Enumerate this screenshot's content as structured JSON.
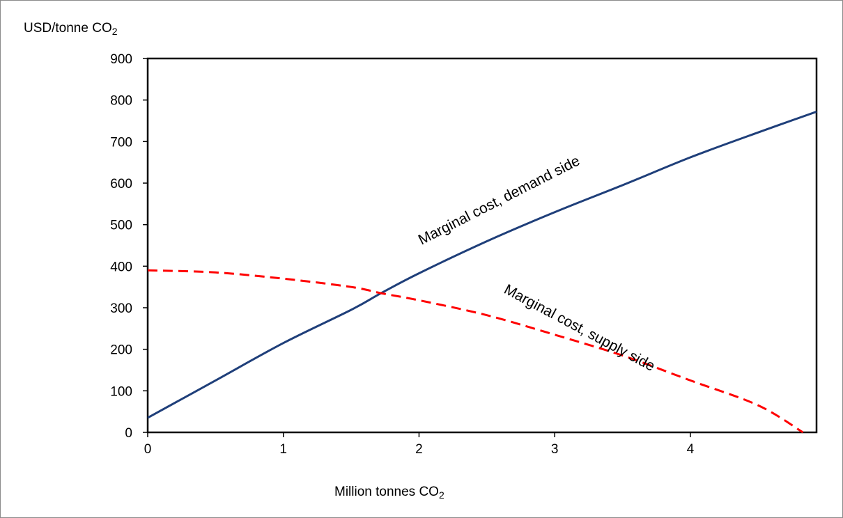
{
  "chart_data": {
    "type": "line",
    "ylabel": "USD/tonne CO",
    "ylabel_sub": "2",
    "xlabel": "Million tonnes CO",
    "xlabel_sub": "2",
    "xlim": [
      0,
      4.93
    ],
    "ylim": [
      0,
      900
    ],
    "xticks": [
      0,
      1,
      2,
      3,
      4
    ],
    "yticks": [
      0,
      100,
      200,
      300,
      400,
      500,
      600,
      700,
      800,
      900
    ],
    "grid": false,
    "series": [
      {
        "name": "Marginal cost, demand side",
        "color": "#1f3f7a",
        "dash": "solid",
        "x": [
          0,
          0.5,
          1.0,
          1.5,
          1.72,
          2.0,
          2.5,
          3.0,
          3.5,
          4.0,
          4.5,
          4.93
        ],
        "y": [
          35,
          125,
          215,
          295,
          335,
          383,
          460,
          530,
          595,
          662,
          722,
          772
        ]
      },
      {
        "name": "Marginal cost, supply side",
        "color": "#ff0000",
        "dash": "dashed",
        "x": [
          0,
          0.5,
          1.0,
          1.5,
          1.72,
          2.0,
          2.5,
          3.0,
          3.5,
          4.0,
          4.5,
          4.83
        ],
        "y": [
          390,
          385,
          370,
          350,
          335,
          318,
          282,
          235,
          185,
          125,
          65,
          0
        ]
      }
    ],
    "annotations": [
      {
        "text": "Marginal cost, demand side",
        "series": 0
      },
      {
        "text": "Marginal cost, supply side",
        "series": 1
      }
    ]
  }
}
